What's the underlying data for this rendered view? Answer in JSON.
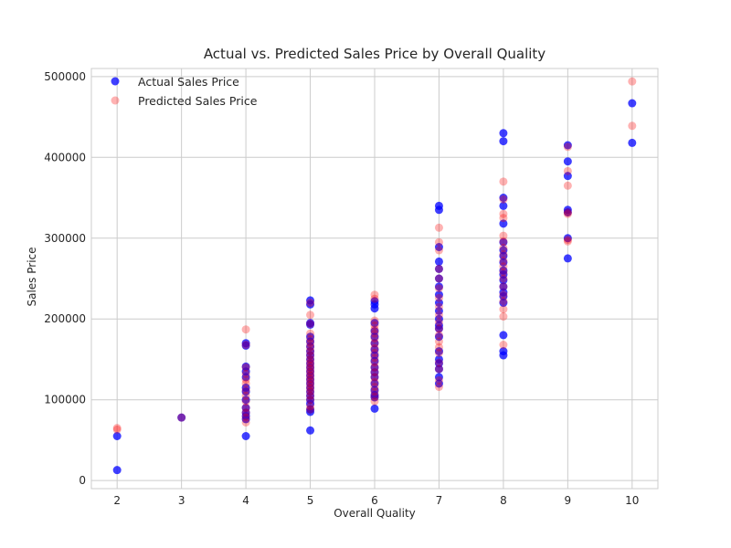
{
  "chart_data": {
    "type": "scatter",
    "title": "Actual vs. Predicted Sales Price by Overall Quality",
    "xlabel": "Overall Quality",
    "ylabel": "Sales Price",
    "xlim": [
      1.6,
      10.4
    ],
    "ylim": [
      -10000,
      510000
    ],
    "x_ticks": [
      2,
      3,
      4,
      5,
      6,
      7,
      8,
      9,
      10
    ],
    "y_ticks": [
      0,
      100000,
      200000,
      300000,
      400000,
      500000
    ],
    "grid": true,
    "legend_position": "top-left",
    "series": [
      {
        "name": "Actual Sales Price",
        "color": "#0000ff",
        "points": [
          [
            2,
            55000
          ],
          [
            2,
            13000
          ],
          [
            3,
            78000
          ],
          [
            4,
            170000
          ],
          [
            4,
            167000
          ],
          [
            4,
            141000
          ],
          [
            4,
            135000
          ],
          [
            4,
            128000
          ],
          [
            4,
            115000
          ],
          [
            4,
            110000
          ],
          [
            4,
            100000
          ],
          [
            4,
            90000
          ],
          [
            4,
            84000
          ],
          [
            4,
            80000
          ],
          [
            4,
            76000
          ],
          [
            4,
            55000
          ],
          [
            5,
            223000
          ],
          [
            5,
            218000
          ],
          [
            5,
            195000
          ],
          [
            5,
            193000
          ],
          [
            5,
            178000
          ],
          [
            5,
            172000
          ],
          [
            5,
            166000
          ],
          [
            5,
            160000
          ],
          [
            5,
            155000
          ],
          [
            5,
            150000
          ],
          [
            5,
            145000
          ],
          [
            5,
            140000
          ],
          [
            5,
            135000
          ],
          [
            5,
            130000
          ],
          [
            5,
            125000
          ],
          [
            5,
            120000
          ],
          [
            5,
            115000
          ],
          [
            5,
            110000
          ],
          [
            5,
            105000
          ],
          [
            5,
            100000
          ],
          [
            5,
            95000
          ],
          [
            5,
            88000
          ],
          [
            5,
            85000
          ],
          [
            5,
            62000
          ],
          [
            6,
            222000
          ],
          [
            6,
            218000
          ],
          [
            6,
            213000
          ],
          [
            6,
            195000
          ],
          [
            6,
            185000
          ],
          [
            6,
            178000
          ],
          [
            6,
            170000
          ],
          [
            6,
            162000
          ],
          [
            6,
            155000
          ],
          [
            6,
            148000
          ],
          [
            6,
            140000
          ],
          [
            6,
            134000
          ],
          [
            6,
            128000
          ],
          [
            6,
            120000
          ],
          [
            6,
            112000
          ],
          [
            6,
            106000
          ],
          [
            6,
            103000
          ],
          [
            6,
            89000
          ],
          [
            7,
            340000
          ],
          [
            7,
            335000
          ],
          [
            7,
            289000
          ],
          [
            7,
            271000
          ],
          [
            7,
            262000
          ],
          [
            7,
            250000
          ],
          [
            7,
            240000
          ],
          [
            7,
            230000
          ],
          [
            7,
            220000
          ],
          [
            7,
            210000
          ],
          [
            7,
            200000
          ],
          [
            7,
            192000
          ],
          [
            7,
            188000
          ],
          [
            7,
            178000
          ],
          [
            7,
            160000
          ],
          [
            7,
            150000
          ],
          [
            7,
            145000
          ],
          [
            7,
            138000
          ],
          [
            7,
            128000
          ],
          [
            7,
            120000
          ],
          [
            8,
            430000
          ],
          [
            8,
            420000
          ],
          [
            8,
            350000
          ],
          [
            8,
            340000
          ],
          [
            8,
            318000
          ],
          [
            8,
            295000
          ],
          [
            8,
            285000
          ],
          [
            8,
            278000
          ],
          [
            8,
            270000
          ],
          [
            8,
            260000
          ],
          [
            8,
            255000
          ],
          [
            8,
            248000
          ],
          [
            8,
            240000
          ],
          [
            8,
            233000
          ],
          [
            8,
            228000
          ],
          [
            8,
            220000
          ],
          [
            8,
            180000
          ],
          [
            8,
            160000
          ],
          [
            8,
            155000
          ],
          [
            9,
            415000
          ],
          [
            9,
            395000
          ],
          [
            9,
            377000
          ],
          [
            9,
            335000
          ],
          [
            9,
            332000
          ],
          [
            9,
            300000
          ],
          [
            9,
            275000
          ],
          [
            10,
            467000
          ],
          [
            10,
            418000
          ]
        ]
      },
      {
        "name": "Predicted Sales Price",
        "color": "#ff0000",
        "points": [
          [
            2,
            65000
          ],
          [
            2,
            63000
          ],
          [
            3,
            78000
          ],
          [
            4,
            187000
          ],
          [
            4,
            168000
          ],
          [
            4,
            140000
          ],
          [
            4,
            132000
          ],
          [
            4,
            125000
          ],
          [
            4,
            120000
          ],
          [
            4,
            112000
          ],
          [
            4,
            105000
          ],
          [
            4,
            98000
          ],
          [
            4,
            90000
          ],
          [
            4,
            84000
          ],
          [
            4,
            78000
          ],
          [
            4,
            72000
          ],
          [
            5,
            220000
          ],
          [
            5,
            205000
          ],
          [
            5,
            194000
          ],
          [
            5,
            182000
          ],
          [
            5,
            175000
          ],
          [
            5,
            170000
          ],
          [
            5,
            165000
          ],
          [
            5,
            160000
          ],
          [
            5,
            155000
          ],
          [
            5,
            150000
          ],
          [
            5,
            146000
          ],
          [
            5,
            142000
          ],
          [
            5,
            138000
          ],
          [
            5,
            134000
          ],
          [
            5,
            130000
          ],
          [
            5,
            126000
          ],
          [
            5,
            122000
          ],
          [
            5,
            118000
          ],
          [
            5,
            114000
          ],
          [
            5,
            110000
          ],
          [
            5,
            105000
          ],
          [
            5,
            100000
          ],
          [
            5,
            92000
          ],
          [
            5,
            88000
          ],
          [
            6,
            230000
          ],
          [
            6,
            225000
          ],
          [
            6,
            198000
          ],
          [
            6,
            192000
          ],
          [
            6,
            187000
          ],
          [
            6,
            182000
          ],
          [
            6,
            176000
          ],
          [
            6,
            170000
          ],
          [
            6,
            164000
          ],
          [
            6,
            158000
          ],
          [
            6,
            152000
          ],
          [
            6,
            146000
          ],
          [
            6,
            140000
          ],
          [
            6,
            134000
          ],
          [
            6,
            128000
          ],
          [
            6,
            122000
          ],
          [
            6,
            116000
          ],
          [
            6,
            110000
          ],
          [
            6,
            104000
          ],
          [
            6,
            98000
          ],
          [
            7,
            313000
          ],
          [
            7,
            295000
          ],
          [
            7,
            285000
          ],
          [
            7,
            262000
          ],
          [
            7,
            250000
          ],
          [
            7,
            238000
          ],
          [
            7,
            226000
          ],
          [
            7,
            215000
          ],
          [
            7,
            205000
          ],
          [
            7,
            196000
          ],
          [
            7,
            188000
          ],
          [
            7,
            180000
          ],
          [
            7,
            172000
          ],
          [
            7,
            165000
          ],
          [
            7,
            158000
          ],
          [
            7,
            146000
          ],
          [
            7,
            138000
          ],
          [
            7,
            124000
          ],
          [
            7,
            116000
          ],
          [
            8,
            370000
          ],
          [
            8,
            348000
          ],
          [
            8,
            330000
          ],
          [
            8,
            325000
          ],
          [
            8,
            303000
          ],
          [
            8,
            296000
          ],
          [
            8,
            288000
          ],
          [
            8,
            280000
          ],
          [
            8,
            272000
          ],
          [
            8,
            265000
          ],
          [
            8,
            258000
          ],
          [
            8,
            250000
          ],
          [
            8,
            240000
          ],
          [
            8,
            230000
          ],
          [
            8,
            222000
          ],
          [
            8,
            212000
          ],
          [
            8,
            203000
          ],
          [
            8,
            168000
          ],
          [
            9,
            413000
          ],
          [
            9,
            383000
          ],
          [
            9,
            365000
          ],
          [
            9,
            332000
          ],
          [
            9,
            330000
          ],
          [
            9,
            298000
          ],
          [
            9,
            296000
          ],
          [
            10,
            494000
          ],
          [
            10,
            439000
          ]
        ]
      }
    ]
  }
}
